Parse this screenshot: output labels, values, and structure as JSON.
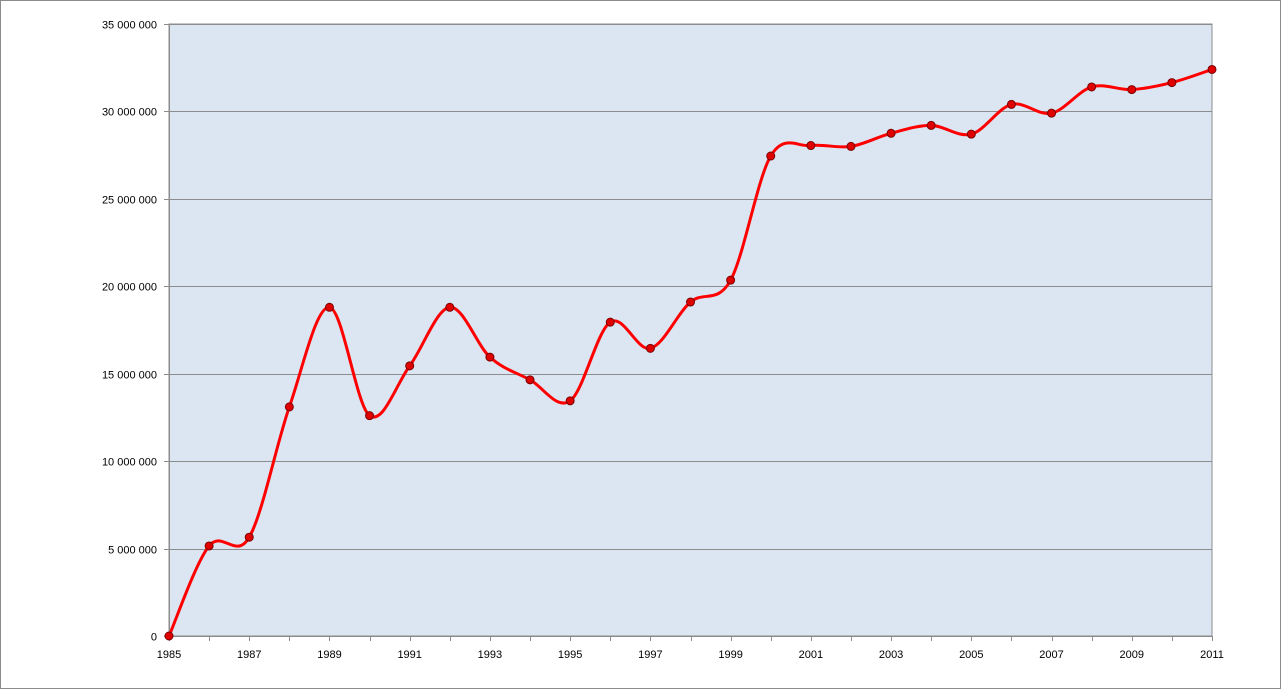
{
  "chart_data": {
    "type": "line",
    "title": "",
    "xlabel": "",
    "ylabel": "",
    "smooth": true,
    "grid": "horizontal",
    "legend": "none",
    "xlim": [
      1985,
      2011
    ],
    "ylim": [
      0,
      35000000
    ],
    "x_tick_labels": [
      "1985",
      "1987",
      "1989",
      "1991",
      "1993",
      "1995",
      "1997",
      "1999",
      "2001",
      "2003",
      "2005",
      "2007",
      "2009",
      "2011"
    ],
    "y_tick_labels": [
      "0",
      "5 000 000",
      "10 000 000",
      "15 000 000",
      "20 000 000",
      "25 000 000",
      "30 000 000",
      "35 000 000"
    ],
    "colors": {
      "plot_area": "#dce6f2",
      "line": "#ff0000",
      "marker_fill": "#e00000",
      "marker_edge": "#7a0000",
      "grid": "#8c8c8c"
    },
    "series": [
      {
        "x": [
          1985,
          1986,
          1987,
          1988,
          1989,
          1990,
          1991,
          1992,
          1993,
          1994,
          1995,
          1996,
          1997,
          1998,
          1999,
          2000,
          2001,
          2002,
          2003,
          2004,
          2005,
          2006,
          2007,
          2008,
          2009,
          2010,
          2011
        ],
        "values": [
          0,
          5150000,
          5650000,
          13100000,
          18800000,
          12600000,
          15450000,
          18800000,
          15950000,
          14650000,
          13450000,
          17950000,
          16450000,
          19100000,
          20350000,
          27450000,
          28050000,
          28000000,
          28750000,
          29200000,
          28700000,
          30400000,
          29900000,
          31400000,
          31250000,
          31650000,
          32400000
        ]
      }
    ]
  }
}
